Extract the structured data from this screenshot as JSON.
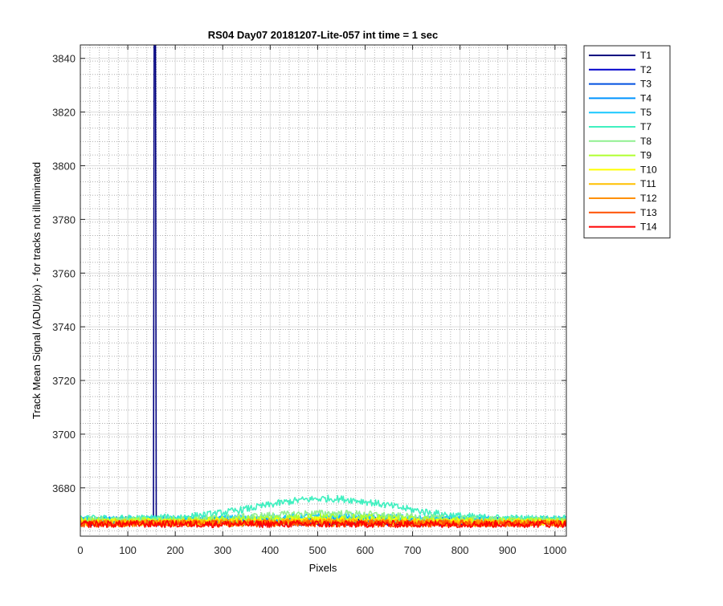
{
  "chart_data": {
    "type": "line",
    "title": "RS04 Day07 20181207-Lite-057 int time = 1 sec",
    "xlabel": "Pixels",
    "ylabel": "Track Mean Signal (ADU/pix) - for tracks not illuminated",
    "xlim": [
      0,
      1024
    ],
    "ylim": [
      3662,
      3845
    ],
    "x_ticks": [
      0,
      100,
      200,
      300,
      400,
      500,
      600,
      700,
      800,
      900,
      1000
    ],
    "y_ticks": [
      3680,
      3700,
      3720,
      3740,
      3760,
      3780,
      3800,
      3820,
      3840
    ],
    "grid": true,
    "minor_grid": true,
    "legend_position": "outside-right",
    "series": [
      {
        "name": "T1",
        "color": "#000080",
        "baseline": 3667.5,
        "hump": 0,
        "spike": {
          "x": 157,
          "y": 3900
        }
      },
      {
        "name": "T2",
        "color": "#0000cc",
        "baseline": 3667.2,
        "hump": 0
      },
      {
        "name": "T3",
        "color": "#0050e0",
        "baseline": 3667.8,
        "hump": 0
      },
      {
        "name": "T4",
        "color": "#0094ff",
        "baseline": 3668.0,
        "hump": 0.5
      },
      {
        "name": "T5",
        "color": "#19c8ff",
        "baseline": 3668.2,
        "hump": 1.0
      },
      {
        "name": "T7",
        "color": "#40f0c0",
        "baseline": 3668.5,
        "hump": 7.5
      },
      {
        "name": "T8",
        "color": "#90f090",
        "baseline": 3668.0,
        "hump": 2.5
      },
      {
        "name": "T9",
        "color": "#b0ff30",
        "baseline": 3667.6,
        "hump": 1.5
      },
      {
        "name": "T10",
        "color": "#ffff00",
        "baseline": 3667.2,
        "hump": 0.8
      },
      {
        "name": "T11",
        "color": "#ffc000",
        "baseline": 3667.0,
        "hump": 0.4
      },
      {
        "name": "T12",
        "color": "#ff9000",
        "baseline": 3666.8,
        "hump": 0.2
      },
      {
        "name": "T13",
        "color": "#ff5000",
        "baseline": 3666.7,
        "hump": 0
      },
      {
        "name": "T14",
        "color": "#ff0000",
        "baseline": 3666.5,
        "hump": 0
      }
    ]
  }
}
